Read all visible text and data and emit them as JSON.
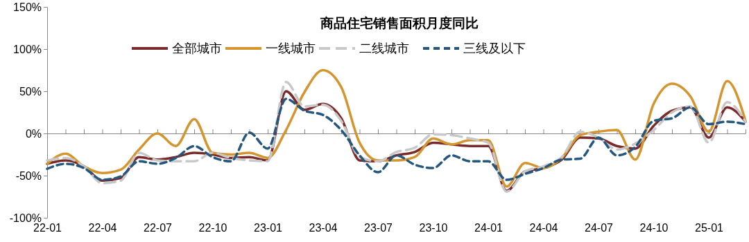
{
  "chart_data": {
    "type": "line",
    "title": "商品住宅销售面积月度同比",
    "categories": [
      "22-01",
      null,
      null,
      "22-04",
      null,
      null,
      "22-07",
      null,
      null,
      "22-10",
      null,
      null,
      "23-01",
      null,
      null,
      "23-04",
      null,
      null,
      "23-07",
      null,
      null,
      "23-10",
      null,
      null,
      "24-01",
      null,
      null,
      "24-04",
      null,
      null,
      "24-07",
      null,
      null,
      "24-10",
      null,
      null,
      "25-01",
      null,
      null
    ],
    "series": [
      {
        "name": "全部城市",
        "color": "#7b2a2a",
        "line_style": "solid",
        "values": [
          -36,
          -32,
          -39,
          -56,
          -53,
          -28,
          -31,
          -28,
          -23,
          -25,
          -29,
          -28,
          -32,
          50,
          28,
          35,
          18,
          -32,
          -33,
          -26,
          -22,
          -11,
          -13,
          -15,
          -15,
          -68,
          -45,
          -41,
          -31,
          -5,
          -6,
          -15,
          -18,
          9,
          27,
          31,
          -5,
          31,
          14
        ]
      },
      {
        "name": "一线城市",
        "color": "#d4952f",
        "line_style": "solid",
        "values": [
          -36,
          -24,
          -39,
          -47,
          -43,
          -19,
          0,
          -15,
          17,
          -23,
          -25,
          -23,
          -29,
          4,
          49,
          75,
          55,
          -11,
          -32,
          -32,
          -28,
          -6,
          -13,
          -8,
          -8,
          -63,
          -35,
          -41,
          -29,
          -2,
          2,
          4,
          -31,
          35,
          59,
          44,
          2,
          62,
          15
        ]
      },
      {
        "name": "二线城市",
        "color": "#c8c8c8",
        "line_style": "dashed",
        "values": [
          -32,
          -29,
          -39,
          -59,
          -56,
          -23,
          -32,
          -33,
          -33,
          -23,
          -29,
          -32,
          -33,
          61,
          32,
          34,
          15,
          -28,
          -33,
          -22,
          -17,
          -1,
          -2,
          -6,
          -11,
          -69,
          -45,
          -39,
          -28,
          2,
          -5,
          -19,
          -12,
          4,
          25,
          32,
          -11,
          37,
          14
        ]
      },
      {
        "name": "三线及以下",
        "color": "#23577f",
        "line_style": "dotted",
        "values": [
          -42,
          -36,
          -41,
          -55,
          -51,
          -33,
          -36,
          -29,
          -15,
          -28,
          -33,
          1,
          -18,
          41,
          27,
          22,
          4,
          -26,
          -46,
          -26,
          -37,
          -41,
          -26,
          -33,
          -33,
          -55,
          -48,
          -41,
          -31,
          -30,
          -5,
          -26,
          -16,
          15,
          18,
          31,
          11,
          14,
          11
        ]
      }
    ],
    "ylim": [
      -100,
      150
    ],
    "yticks": [
      {
        "value": -100,
        "label": "-100%"
      },
      {
        "value": -50,
        "label": "-50%"
      },
      {
        "value": 0,
        "label": "0%"
      },
      {
        "value": 50,
        "label": "50%"
      },
      {
        "value": 100,
        "label": "100%"
      },
      {
        "value": 150,
        "label": "150%"
      }
    ],
    "legend": "top"
  }
}
